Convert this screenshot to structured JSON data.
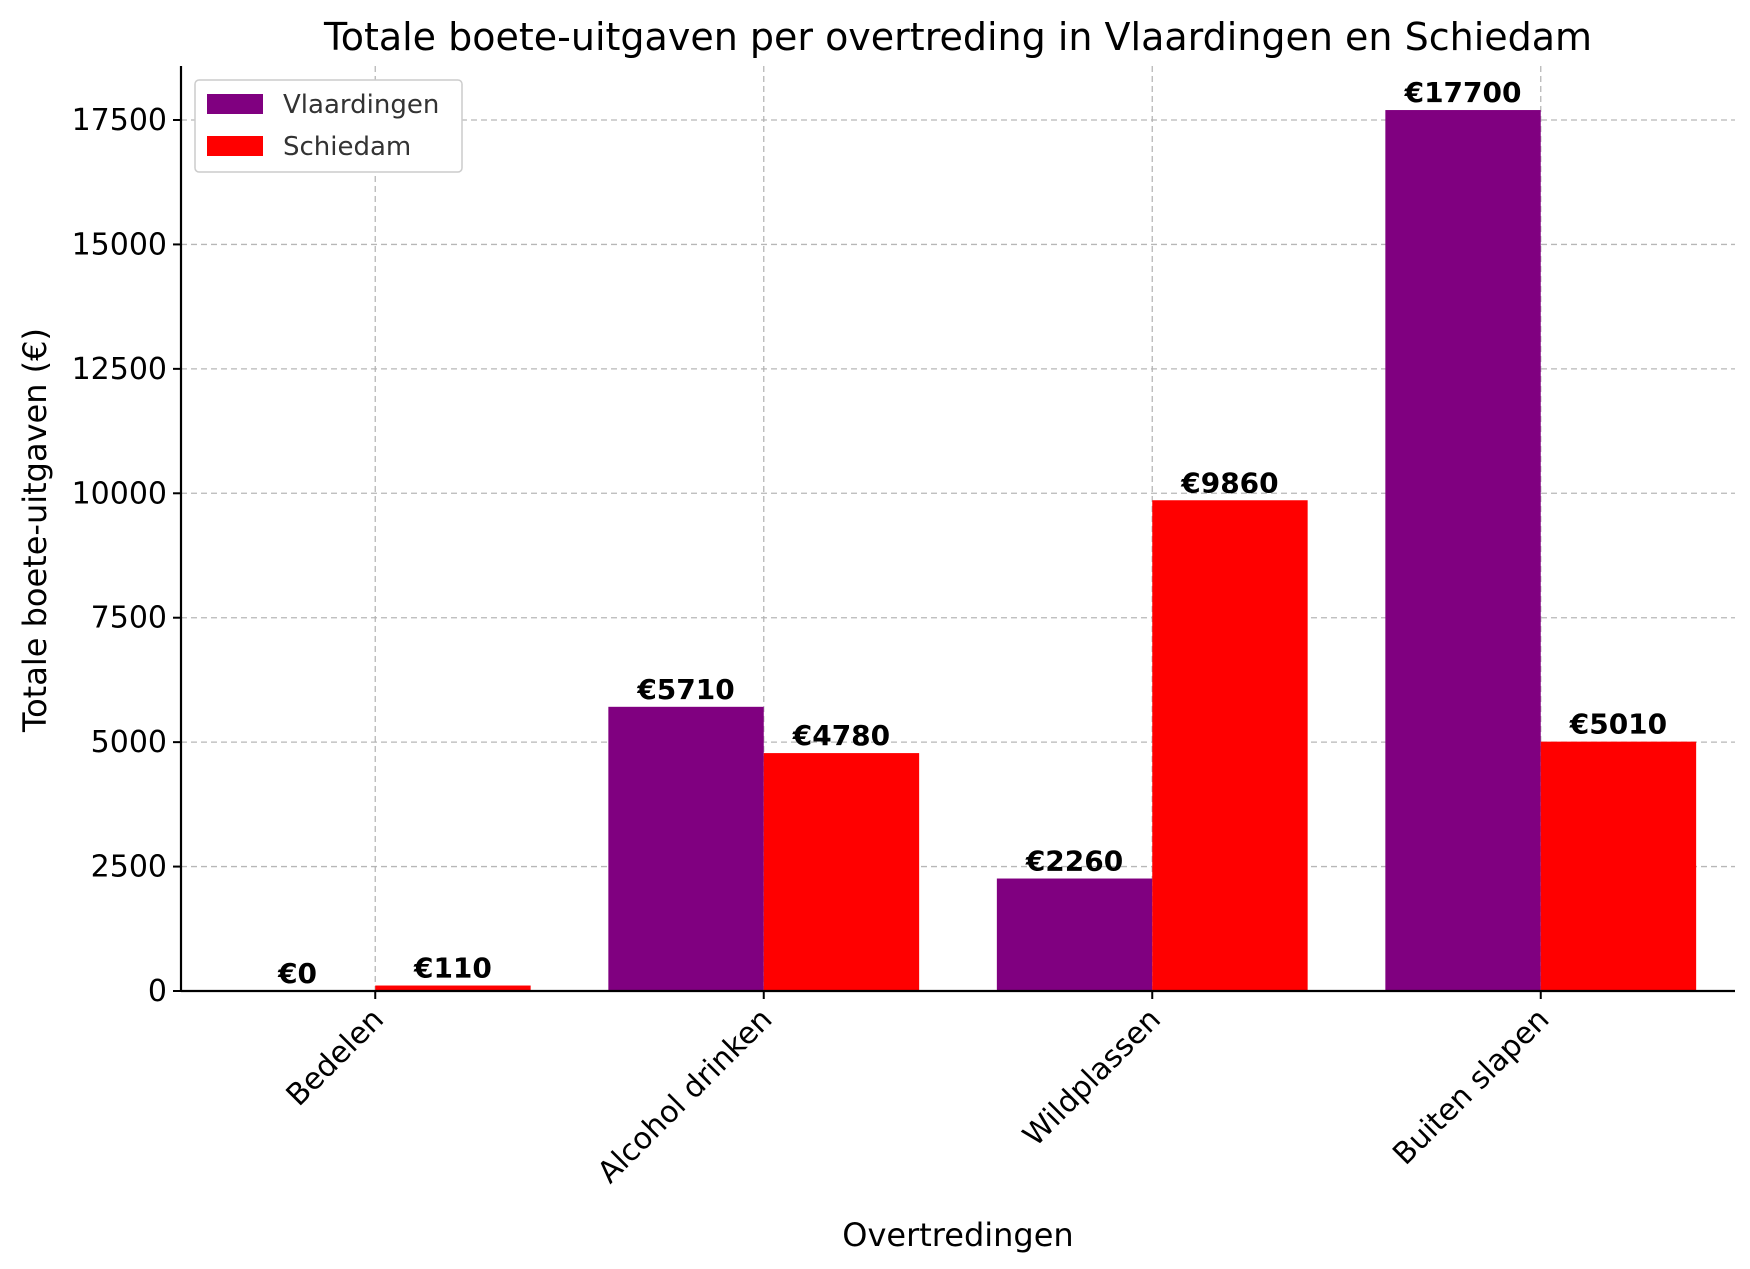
{
  "chart_data": {
    "type": "bar",
    "title": "Totale boete-uitgaven per overtreding in Vlaardingen en Schiedam",
    "xlabel": "Overtredingen",
    "ylabel": "Totale boete-uitgaven (€)",
    "categories": [
      "Bedelen",
      "Alcohol drinken",
      "Wildplassen",
      "Buiten slapen"
    ],
    "series": [
      {
        "name": "Vlaardingen",
        "color": "#800080",
        "values": [
          0,
          5710,
          2260,
          17700
        ],
        "labels": [
          "€0",
          "€5710",
          "€2260",
          "€17700"
        ]
      },
      {
        "name": "Schiedam",
        "color": "#ff0000",
        "values": [
          110,
          4780,
          9860,
          5010
        ],
        "labels": [
          "€110",
          "€4780",
          "€9860",
          "€5010"
        ]
      }
    ],
    "yticks": [
      0,
      2500,
      5000,
      7500,
      10000,
      12500,
      15000,
      17500
    ],
    "ylim": [
      0,
      18585
    ],
    "grid": true,
    "legend_position": "upper-left"
  }
}
